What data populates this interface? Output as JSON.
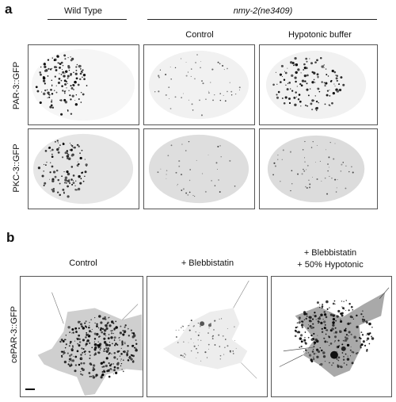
{
  "panel_a": {
    "letter": "a",
    "headers": {
      "wild_type": "Wild Type",
      "mutant": "nmy-2(ne3409)",
      "control": "Control",
      "hypotonic": "Hypotonic buffer"
    },
    "row_labels": [
      "PAR-3::GFP",
      "PKC-3::GFP"
    ]
  },
  "panel_b": {
    "letter": "b",
    "headers": {
      "control": "Control",
      "blebbistatin": "+ Blebbistatin",
      "bleb_hypo_line1": "+ Blebbistatin",
      "bleb_hypo_line2": "+ 50% Hypotonic"
    },
    "row_label": "cePAR-3::GFP"
  }
}
